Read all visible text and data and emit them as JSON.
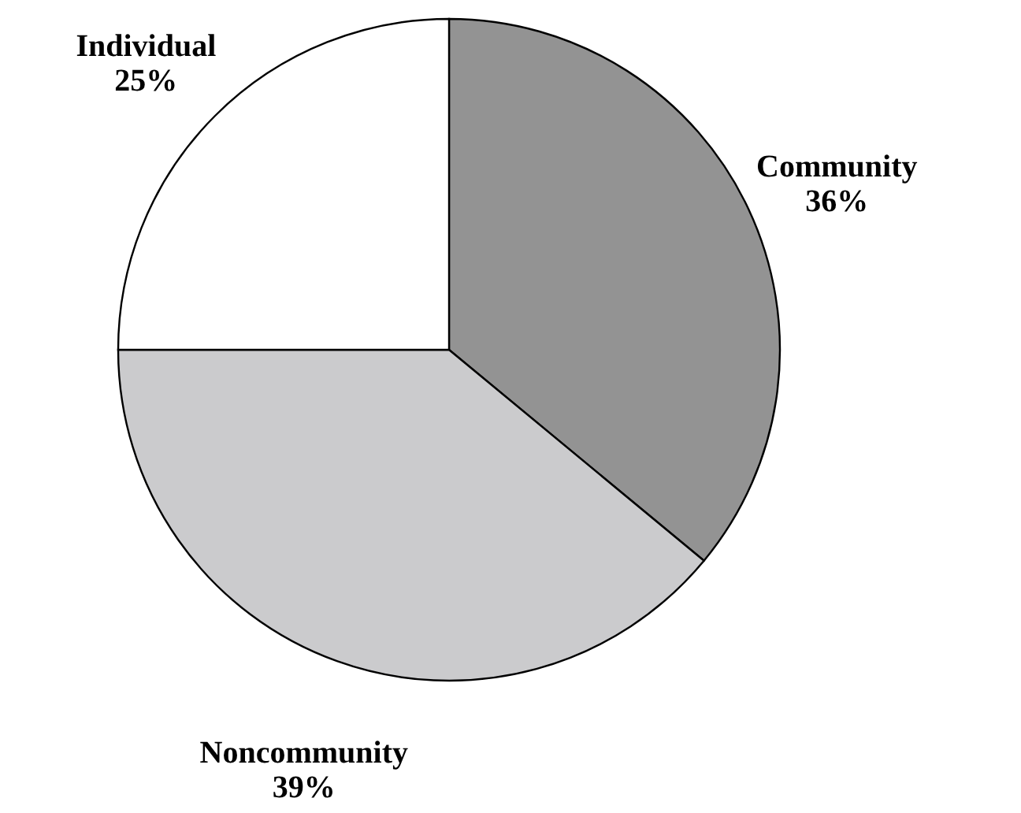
{
  "chart_data": {
    "type": "pie",
    "categories": [
      "Community",
      "Noncommunity",
      "Individual"
    ],
    "values": [
      36,
      39,
      25
    ],
    "value_labels": [
      "36%",
      "39%",
      "25%"
    ],
    "colors": [
      "#939393",
      "#cbcbcd",
      "#ffffff"
    ]
  }
}
